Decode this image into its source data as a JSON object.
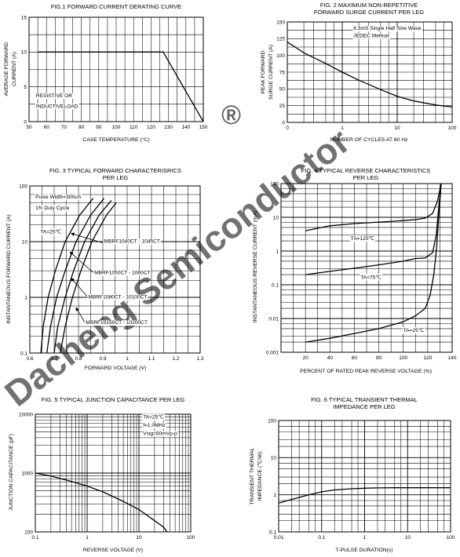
{
  "watermark": {
    "text": "Dacheng Semiconductor",
    "mark": "®"
  },
  "chart_data": [
    {
      "id": "fig1",
      "type": "line",
      "title": "FIG.1 FORWARD CURRENT DERATING CURVE",
      "xlabel": "CASE TEMPERATURE (°C)",
      "ylabel": "AVERAGE FORWARD CURRENT (A)",
      "x_scale": "linear",
      "y_scale": "linear",
      "xlim": [
        50,
        150
      ],
      "ylim": [
        0,
        15
      ],
      "x_ticks": [
        50,
        60,
        70,
        80,
        90,
        100,
        110,
        120,
        130,
        140,
        150
      ],
      "x_tick_labels": [
        "50",
        "60",
        "70",
        "80",
        "90",
        "100",
        "110",
        "120",
        "130",
        "140",
        "150"
      ],
      "y_ticks": [
        0,
        5,
        10,
        15
      ],
      "y_tick_labels": [
        "0",
        "5",
        "10",
        "15"
      ],
      "x_grid": [
        50,
        55,
        60,
        65,
        70,
        75,
        80,
        85,
        90,
        95,
        100,
        105,
        110,
        115,
        120,
        125,
        130,
        135,
        140,
        145,
        150
      ],
      "y_grid": [
        0,
        2.5,
        5,
        7.5,
        10,
        12.5,
        15
      ],
      "series": [
        {
          "points": [
            [
              55,
              10
            ],
            [
              127,
              10
            ],
            [
              150,
              0
            ]
          ]
        }
      ],
      "annotations": [
        {
          "text": "RESISTIVE OR",
          "x": 54,
          "y": 3.5
        },
        {
          "text": "INDUCTIVELOAD",
          "x": 54,
          "y": 2.0
        }
      ]
    },
    {
      "id": "fig2",
      "type": "line",
      "title": "FIG. 2 MAXIMUM NON-REPETITIVE FORWARD SURGE CURRENT PER LEG",
      "xlabel": "NUMBER OF CYCLES AT 60 Hz",
      "ylabel": "PEAK FORWARD SURGE CURRENT (A)",
      "x_scale": "log",
      "y_scale": "linear",
      "xlim": [
        0,
        100
      ],
      "x_log_min": 0.1,
      "ylim": [
        0,
        150
      ],
      "x_ticks": [
        0.1,
        1,
        10,
        100
      ],
      "x_tick_labels": [
        "0",
        "1",
        "10",
        "100"
      ],
      "y_ticks": [
        0,
        25,
        50,
        75,
        100,
        125,
        150
      ],
      "y_tick_labels": [
        "0",
        "25",
        "50",
        "75",
        "100",
        "125",
        "150"
      ],
      "x_grid": [
        0.1,
        0.2,
        0.3,
        0.5,
        0.7,
        1,
        2,
        3,
        5,
        7,
        10,
        20,
        30,
        50,
        70,
        100
      ],
      "y_grid": [
        0,
        12.5,
        25,
        37.5,
        50,
        62.5,
        75,
        87.5,
        100,
        112.5,
        125,
        137.5,
        150
      ],
      "series": [
        {
          "points": [
            [
              0.1,
              120
            ],
            [
              0.2,
              104
            ],
            [
              0.5,
              88
            ],
            [
              1,
              75
            ],
            [
              2,
              63
            ],
            [
              5,
              49
            ],
            [
              10,
              39
            ],
            [
              20,
              32
            ],
            [
              50,
              26
            ],
            [
              100,
              23
            ]
          ]
        }
      ],
      "annotations": [
        {
          "text": "8.3mS Single Half Sine Wave",
          "x": 1.6,
          "y": 138
        },
        {
          "text": "JEDEC Method",
          "x": 1.6,
          "y": 127
        }
      ]
    },
    {
      "id": "fig3",
      "type": "line",
      "title": "FIG. 3 TYPICAL FORWARD CHARACTERISRICS PER LEG",
      "xlabel": "FORWARD VOLTAGE (V)",
      "ylabel": "INSTANTANEOUS FORWARD CURRENT (A)",
      "x_scale": "linear",
      "y_scale": "log",
      "xlim": [
        0.6,
        1.3
      ],
      "ylim": [
        0.1,
        100
      ],
      "x_ticks": [
        0.6,
        0.7,
        0.8,
        0.9,
        1.0,
        1.1,
        1.2,
        1.3
      ],
      "x_tick_labels": [
        "0.6",
        "0.7",
        "0.8",
        "0.9",
        "1",
        "1.1",
        "1.2",
        "1.3"
      ],
      "y_ticks": [
        0.1,
        1,
        10,
        100
      ],
      "y_tick_labels": [
        "0.1",
        "1",
        "10",
        "100"
      ],
      "x_grid": [
        0.6,
        0.65,
        0.7,
        0.75,
        0.8,
        0.85,
        0.9,
        0.95,
        1.0,
        1.05,
        1.1,
        1.15,
        1.2,
        1.25,
        1.3
      ],
      "y_grid": [
        0.1,
        0.2,
        0.3,
        0.5,
        0.7,
        1,
        2,
        3,
        5,
        7,
        10,
        20,
        30,
        50,
        70,
        100
      ],
      "series": [
        {
          "name": "MBRF1040CT - 1045CT",
          "points": [
            [
              0.645,
              0.1
            ],
            [
              0.655,
              0.3
            ],
            [
              0.675,
              1
            ],
            [
              0.705,
              3
            ],
            [
              0.745,
              10
            ],
            [
              0.805,
              30
            ],
            [
              0.86,
              60
            ]
          ]
        },
        {
          "name": "MBRF1050CT - 1060CT",
          "points": [
            [
              0.67,
              0.1
            ],
            [
              0.685,
              0.3
            ],
            [
              0.71,
              1
            ],
            [
              0.745,
              3
            ],
            [
              0.79,
              10
            ],
            [
              0.85,
              30
            ],
            [
              0.905,
              60
            ]
          ]
        },
        {
          "name": "MBRF1080CT - 10100CT",
          "points": [
            [
              0.7,
              0.1
            ],
            [
              0.715,
              0.3
            ],
            [
              0.745,
              1
            ],
            [
              0.78,
              3
            ],
            [
              0.825,
              10
            ],
            [
              0.885,
              30
            ],
            [
              0.935,
              55
            ]
          ]
        },
        {
          "name": "MBRF10150CT - 10200CT",
          "points": [
            [
              0.725,
              0.1
            ],
            [
              0.745,
              0.3
            ],
            [
              0.775,
              1
            ],
            [
              0.81,
              3
            ],
            [
              0.855,
              10
            ],
            [
              0.915,
              30
            ],
            [
              0.955,
              50
            ]
          ]
        }
      ],
      "annotations": [
        {
          "text": "Pulse Width=300uS",
          "x": 0.623,
          "y": 60
        },
        {
          "text": "1% Duty Cycle",
          "x": 0.623,
          "y": 38
        },
        {
          "text": "TA=25℃",
          "x": 0.643,
          "y": 14
        },
        {
          "text": "MBRF1040CT - 1045CT",
          "x": 0.905,
          "y": 9.5
        },
        {
          "text": "MBRF1050CT - 1060CT",
          "x": 0.865,
          "y": 2.6
        },
        {
          "text": "MBRF1080CT - 10100CT",
          "x": 0.84,
          "y": 0.95
        },
        {
          "text": "MBRF10150CT - 10200CT",
          "x": 0.83,
          "y": 0.33
        }
      ]
    },
    {
      "id": "fig4",
      "type": "line",
      "title": "FIG. 4 TYPICAL REVERSE CHARACTERISTICS PER LEG",
      "xlabel": "PERCENT OF RATED PEAK REVERSE VOLTAGE (%)",
      "ylabel": "INSTANTANEOUS REVERSE CURRENT (mA)",
      "x_scale": "linear",
      "y_scale": "log",
      "xlim": [
        0,
        140
      ],
      "ylim": [
        0.001,
        100
      ],
      "x_ticks": [
        20,
        40,
        60,
        80,
        100,
        120,
        140
      ],
      "x_tick_labels": [
        "20",
        "40",
        "60",
        "80",
        "100",
        "120",
        "140"
      ],
      "y_ticks": [
        0.001,
        0.01,
        0.1,
        1,
        10,
        100
      ],
      "y_tick_labels": [
        "0.001",
        "0.01",
        "0.1",
        "1",
        "10",
        "100"
      ],
      "x_grid": [
        0,
        10,
        20,
        30,
        40,
        50,
        60,
        70,
        80,
        90,
        100,
        110,
        120,
        130,
        140
      ],
      "y_grid": [
        0.001,
        0.002,
        0.003,
        0.005,
        0.007,
        0.01,
        0.02,
        0.03,
        0.05,
        0.07,
        0.1,
        0.2,
        0.3,
        0.5,
        0.7,
        1,
        2,
        3,
        5,
        7,
        10,
        20,
        30,
        50,
        70,
        100
      ],
      "series": [
        {
          "name": "TA=125℃",
          "points": [
            [
              20,
              4
            ],
            [
              40,
              5.6
            ],
            [
              60,
              6.5
            ],
            [
              80,
              7.2
            ],
            [
              100,
              8
            ],
            [
              110,
              8.5
            ],
            [
              118,
              9.5
            ],
            [
              124,
              13
            ],
            [
              128,
              30
            ],
            [
              131,
              100
            ]
          ]
        },
        {
          "name": "TA=75℃",
          "points": [
            [
              20,
              0.2
            ],
            [
              40,
              0.25
            ],
            [
              60,
              0.31
            ],
            [
              80,
              0.39
            ],
            [
              100,
              0.5
            ],
            [
              110,
              0.6
            ],
            [
              118,
              0.62
            ],
            [
              124,
              0.9
            ],
            [
              127,
              3
            ],
            [
              129,
              20
            ],
            [
              131,
              100
            ]
          ]
        },
        {
          "name": "TA=25℃",
          "points": [
            [
              20,
              0.002
            ],
            [
              40,
              0.0026
            ],
            [
              60,
              0.0036
            ],
            [
              80,
              0.005
            ],
            [
              100,
              0.008
            ],
            [
              110,
              0.012
            ],
            [
              118,
              0.02
            ],
            [
              122,
              0.05
            ],
            [
              125,
              0.2
            ],
            [
              127,
              1
            ],
            [
              129,
              10
            ],
            [
              131,
              100
            ]
          ]
        }
      ],
      "annotations": [
        {
          "text": "TA=125℃",
          "x": 57,
          "y": 2.1
        },
        {
          "text": "TA=75℃",
          "x": 65,
          "y": 0.15
        },
        {
          "text": "TA=25℃",
          "x": 100,
          "y": 0.004
        }
      ]
    },
    {
      "id": "fig5",
      "type": "line",
      "title": "FIG. 5 TYPICAL JUNCTION CAPACITANCE PER LEG",
      "xlabel": "REVERSE VOLTAGE (V)",
      "ylabel": "JUNCTION CAPACITANCE (pF)",
      "x_scale": "log",
      "y_scale": "log",
      "xlim": [
        0.1,
        100
      ],
      "ylim": [
        100,
        10000
      ],
      "x_ticks": [
        0.1,
        1,
        10,
        100
      ],
      "x_tick_labels": [
        "0.1",
        "1",
        "10",
        "100"
      ],
      "y_ticks": [
        100,
        1000,
        10000
      ],
      "y_tick_labels": [
        "100",
        "1000",
        "10000"
      ],
      "x_grid": [
        0.1,
        0.2,
        0.3,
        0.4,
        0.5,
        0.6,
        0.7,
        0.8,
        0.9,
        1,
        2,
        3,
        4,
        5,
        6,
        7,
        8,
        9,
        10,
        20,
        30,
        40,
        50,
        60,
        70,
        80,
        90,
        100
      ],
      "y_grid": [
        100,
        200,
        300,
        400,
        500,
        600,
        700,
        800,
        900,
        1000,
        2000,
        3000,
        4000,
        5000,
        6000,
        7000,
        8000,
        9000,
        10000
      ],
      "series": [
        {
          "points": [
            [
              0.1,
              1000
            ],
            [
              0.2,
              890
            ],
            [
              0.5,
              720
            ],
            [
              1,
              600
            ],
            [
              2,
              480
            ],
            [
              5,
              330
            ],
            [
              10,
              240
            ],
            [
              20,
              155
            ],
            [
              30,
              120
            ],
            [
              35,
              100
            ]
          ]
        }
      ],
      "annotations": [
        {
          "text": "TA=25℃",
          "x": 12,
          "y": 8400
        },
        {
          "text": "f=1.0MHz",
          "x": 12,
          "y": 6100
        },
        {
          "text": "Vsig=50mVp-p",
          "x": 12,
          "y": 4400
        }
      ]
    },
    {
      "id": "fig6",
      "type": "line",
      "title": "FIG. 6 TYPICAL TRANSIENT THERMAL IMPEDANCE PER LEG",
      "xlabel": "T-PULSE DURATION(s)",
      "ylabel": "TRANSIENT THERMAL IMPEDANCE (℃/W)",
      "x_scale": "log",
      "y_scale": "log",
      "xlim": [
        0.01,
        100
      ],
      "ylim": [
        0.1,
        100
      ],
      "x_ticks": [
        0.01,
        0.1,
        1,
        10,
        100
      ],
      "x_tick_labels": [
        "0.01",
        "0.1",
        "1",
        "10",
        "100"
      ],
      "y_ticks": [
        0.1,
        1,
        10,
        100
      ],
      "y_tick_labels": [
        "0.1",
        "1",
        "10",
        "100"
      ],
      "x_grid": [
        0.01,
        0.02,
        0.03,
        0.05,
        0.07,
        0.1,
        0.2,
        0.3,
        0.5,
        0.7,
        1,
        2,
        3,
        5,
        7,
        10,
        20,
        30,
        50,
        70,
        100
      ],
      "y_grid": [
        0.1,
        0.2,
        0.3,
        0.5,
        0.7,
        1,
        2,
        3,
        5,
        7,
        10,
        20,
        30,
        50,
        70,
        100
      ],
      "series": [
        {
          "points": [
            [
              0.01,
              0.6
            ],
            [
              0.02,
              0.75
            ],
            [
              0.05,
              1.0
            ],
            [
              0.1,
              1.2
            ],
            [
              0.2,
              1.35
            ],
            [
              0.5,
              1.45
            ],
            [
              1,
              1.5
            ],
            [
              2,
              1.53
            ],
            [
              5,
              1.55
            ],
            [
              100,
              1.55
            ]
          ]
        }
      ],
      "annotations": []
    }
  ]
}
